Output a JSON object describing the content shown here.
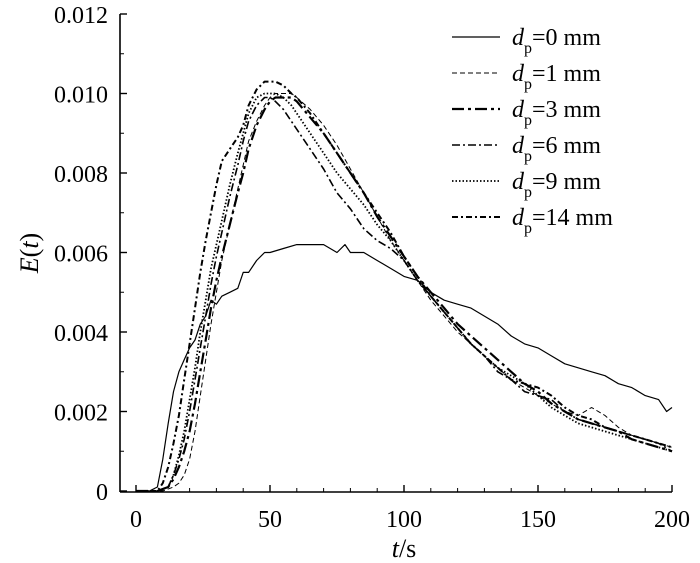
{
  "chart_data": {
    "type": "line",
    "title": "",
    "xlabel": {
      "var": "t",
      "unit": "/s"
    },
    "ylabel": {
      "var": "E",
      "paren_open": "(",
      "arg": "t",
      "paren_close": ")"
    },
    "xlim": [
      0,
      200
    ],
    "ylim": [
      0,
      0.012
    ],
    "xticks": [
      0,
      50,
      100,
      150,
      200
    ],
    "yticks": [
      0,
      0.002,
      0.004,
      0.006,
      0.008,
      0.01,
      0.012
    ],
    "xtick_labels": [
      "0",
      "50",
      "100",
      "150",
      "200"
    ],
    "ytick_labels": [
      "0",
      "0.002",
      "0.004",
      "0.006",
      "0.008",
      "0.010",
      "0.012"
    ],
    "grid": false,
    "legend_placement": "top-right",
    "series": [
      {
        "legend_var": "d",
        "legend_sub": "p",
        "legend_rest": "=0 mm",
        "style": "solid",
        "x": [
          0,
          5,
          8,
          10,
          12,
          14,
          16,
          18,
          20,
          22,
          24,
          26,
          28,
          30,
          32,
          35,
          38,
          40,
          42,
          45,
          48,
          50,
          55,
          60,
          65,
          70,
          75,
          78,
          80,
          85,
          90,
          95,
          100,
          105,
          110,
          115,
          120,
          125,
          130,
          135,
          140,
          145,
          150,
          155,
          160,
          165,
          170,
          175,
          180,
          185,
          190,
          195,
          198,
          200
        ],
        "y": [
          0,
          0,
          0.0001,
          0.0008,
          0.0017,
          0.0025,
          0.003,
          0.0033,
          0.0036,
          0.0038,
          0.0042,
          0.0044,
          0.0048,
          0.0047,
          0.0049,
          0.005,
          0.0051,
          0.0055,
          0.0055,
          0.0058,
          0.006,
          0.006,
          0.0061,
          0.0062,
          0.0062,
          0.0062,
          0.006,
          0.0062,
          0.006,
          0.006,
          0.0058,
          0.0056,
          0.0054,
          0.0053,
          0.005,
          0.0048,
          0.0047,
          0.0046,
          0.0044,
          0.0042,
          0.0039,
          0.0037,
          0.0036,
          0.0034,
          0.0032,
          0.0031,
          0.003,
          0.0029,
          0.0027,
          0.0026,
          0.0024,
          0.0023,
          0.002,
          0.0021
        ]
      },
      {
        "legend_var": "d",
        "legend_sub": "p",
        "legend_rest": "=1 mm",
        "style": "dashed",
        "x": [
          0,
          10,
          14,
          16,
          18,
          20,
          22,
          24,
          26,
          28,
          30,
          32,
          35,
          38,
          40,
          42,
          45,
          48,
          50,
          52,
          55,
          58,
          60,
          65,
          70,
          75,
          80,
          85,
          90,
          95,
          100,
          105,
          110,
          115,
          120,
          125,
          130,
          135,
          140,
          145,
          150,
          155,
          160,
          165,
          170,
          175,
          180,
          185,
          190,
          195,
          200
        ],
        "y": [
          0,
          0,
          0.0001,
          0.0002,
          0.0004,
          0.0008,
          0.0015,
          0.0024,
          0.0033,
          0.0042,
          0.005,
          0.0058,
          0.0067,
          0.0076,
          0.0082,
          0.0088,
          0.0093,
          0.0097,
          0.0099,
          0.01,
          0.01,
          0.01,
          0.0099,
          0.0096,
          0.0092,
          0.0087,
          0.0081,
          0.0075,
          0.0069,
          0.0063,
          0.0058,
          0.0053,
          0.0048,
          0.0044,
          0.004,
          0.0037,
          0.0034,
          0.0031,
          0.0028,
          0.0026,
          0.0024,
          0.0022,
          0.002,
          0.0019,
          0.0021,
          0.0019,
          0.0016,
          0.0014,
          0.0013,
          0.0012,
          0.0011
        ]
      },
      {
        "legend_var": "d",
        "legend_sub": "p",
        "legend_rest": "=3 mm",
        "style": "dashdot-long",
        "x": [
          0,
          8,
          12,
          14,
          16,
          18,
          20,
          22,
          24,
          26,
          28,
          30,
          32,
          35,
          38,
          40,
          42,
          45,
          48,
          50,
          52,
          55,
          58,
          60,
          65,
          70,
          75,
          80,
          85,
          90,
          95,
          100,
          105,
          110,
          115,
          120,
          125,
          130,
          135,
          140,
          145,
          150,
          155,
          160,
          165,
          170,
          175,
          180,
          185,
          190,
          195,
          200
        ],
        "y": [
          0,
          0,
          0.0001,
          0.0003,
          0.0006,
          0.001,
          0.0015,
          0.0022,
          0.003,
          0.0038,
          0.0046,
          0.0053,
          0.0059,
          0.0067,
          0.0075,
          0.008,
          0.0086,
          0.0092,
          0.0096,
          0.0098,
          0.0099,
          0.0099,
          0.0099,
          0.0098,
          0.0094,
          0.009,
          0.0085,
          0.008,
          0.0075,
          0.0069,
          0.0064,
          0.0059,
          0.0054,
          0.005,
          0.0046,
          0.0042,
          0.0039,
          0.0036,
          0.0033,
          0.003,
          0.0027,
          0.0025,
          0.0022,
          0.002,
          0.0018,
          0.0017,
          0.0016,
          0.0015,
          0.0013,
          0.0012,
          0.0011,
          0.001
        ]
      },
      {
        "legend_var": "d",
        "legend_sub": "p",
        "legend_rest": "=6 mm",
        "style": "dashdot",
        "x": [
          0,
          8,
          12,
          14,
          16,
          18,
          20,
          22,
          24,
          26,
          28,
          30,
          32,
          35,
          38,
          40,
          42,
          45,
          48,
          50,
          52,
          55,
          58,
          60,
          65,
          70,
          75,
          80,
          85,
          90,
          95,
          100,
          105,
          110,
          115,
          120,
          125,
          130,
          135,
          140,
          145,
          150,
          155,
          160,
          165,
          170,
          175,
          180,
          185,
          190,
          195,
          200
        ],
        "y": [
          0,
          0,
          0.0001,
          0.0004,
          0.0008,
          0.0013,
          0.002,
          0.0028,
          0.0036,
          0.0044,
          0.0052,
          0.0059,
          0.0065,
          0.0074,
          0.0082,
          0.0088,
          0.0093,
          0.0097,
          0.0099,
          0.0099,
          0.0098,
          0.0096,
          0.0093,
          0.0091,
          0.0086,
          0.0081,
          0.0075,
          0.0071,
          0.0066,
          0.0063,
          0.0061,
          0.0058,
          0.0053,
          0.0049,
          0.0045,
          0.0041,
          0.0037,
          0.0034,
          0.003,
          0.0028,
          0.0025,
          0.0024,
          0.0023,
          0.002,
          0.0018,
          0.0017,
          0.0016,
          0.0015,
          0.0014,
          0.0013,
          0.0012,
          0.001
        ]
      },
      {
        "legend_var": "d",
        "legend_sub": "p",
        "legend_rest": "=9 mm",
        "style": "dotted",
        "x": [
          0,
          8,
          12,
          14,
          16,
          18,
          20,
          22,
          24,
          26,
          28,
          30,
          32,
          35,
          38,
          40,
          42,
          45,
          48,
          50,
          52,
          55,
          58,
          60,
          65,
          70,
          75,
          80,
          85,
          90,
          95,
          100,
          105,
          110,
          115,
          120,
          125,
          130,
          135,
          140,
          145,
          150,
          155,
          160,
          165,
          170,
          175,
          180,
          185,
          190,
          195,
          200
        ],
        "y": [
          0,
          0,
          0.0001,
          0.0004,
          0.0009,
          0.0015,
          0.0023,
          0.0031,
          0.004,
          0.0048,
          0.0056,
          0.0062,
          0.0068,
          0.0077,
          0.0085,
          0.009,
          0.0095,
          0.0099,
          0.01,
          0.01,
          0.01,
          0.0099,
          0.0097,
          0.0095,
          0.009,
          0.0085,
          0.008,
          0.0076,
          0.0072,
          0.0067,
          0.0063,
          0.0058,
          0.0053,
          0.0049,
          0.0045,
          0.0041,
          0.0037,
          0.0034,
          0.0031,
          0.0029,
          0.0027,
          0.0024,
          0.0021,
          0.0019,
          0.0017,
          0.0016,
          0.0015,
          0.0014,
          0.0013,
          0.0012,
          0.0011,
          0.001
        ]
      },
      {
        "legend_var": "d",
        "legend_sub": "p",
        "legend_rest": "=14 mm",
        "style": "dashdot-short",
        "x": [
          0,
          8,
          10,
          12,
          14,
          16,
          18,
          20,
          22,
          24,
          26,
          28,
          30,
          32,
          35,
          38,
          40,
          42,
          45,
          48,
          50,
          52,
          55,
          58,
          60,
          65,
          70,
          75,
          80,
          85,
          90,
          95,
          100,
          105,
          110,
          115,
          120,
          125,
          130,
          135,
          140,
          145,
          150,
          155,
          160,
          165,
          170,
          175,
          180,
          185,
          190,
          195,
          200
        ],
        "y": [
          0,
          0,
          0.0002,
          0.0006,
          0.0012,
          0.0019,
          0.0028,
          0.0037,
          0.0046,
          0.0055,
          0.0063,
          0.007,
          0.0077,
          0.0083,
          0.0086,
          0.0089,
          0.0092,
          0.0097,
          0.0101,
          0.0103,
          0.0103,
          0.0103,
          0.0102,
          0.01,
          0.0099,
          0.0095,
          0.009,
          0.0085,
          0.008,
          0.0075,
          0.007,
          0.0065,
          0.0059,
          0.0054,
          0.0049,
          0.0045,
          0.0041,
          0.0037,
          0.0034,
          0.0031,
          0.0028,
          0.0027,
          0.0026,
          0.0024,
          0.0021,
          0.0019,
          0.0018,
          0.0016,
          0.0015,
          0.0014,
          0.0013,
          0.0012,
          0.0011
        ]
      }
    ]
  }
}
